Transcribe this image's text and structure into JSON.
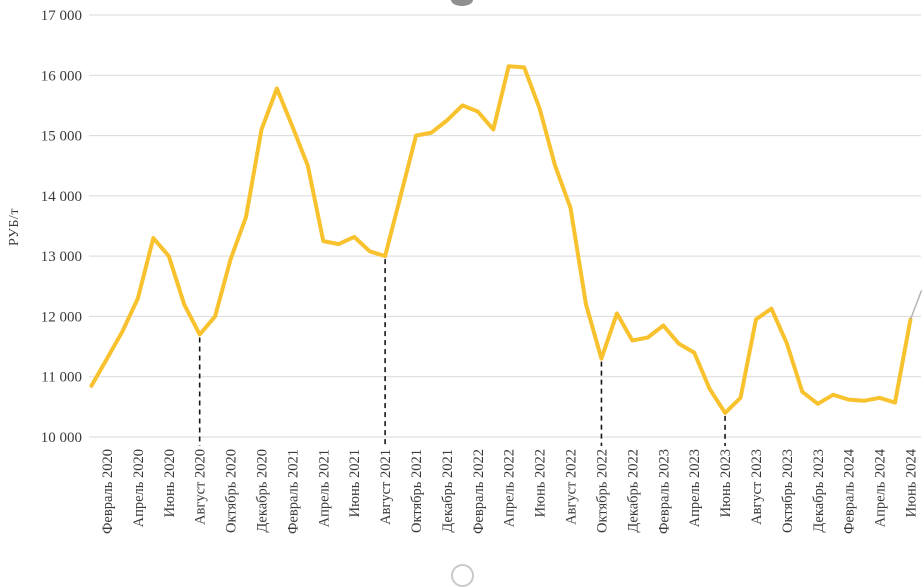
{
  "figure": {
    "background": "#ffffff",
    "gridline_color": "#d9d9d9",
    "text_color": "#3a3a3a",
    "marker_line_color": "#161616",
    "tip_color": "#b3b3b3",
    "selection_handle_top": "visible",
    "selection_handle_bottom": "visible"
  },
  "chart_data": {
    "type": "line",
    "title": "",
    "ylabel": "РУБ/т",
    "ylim": [
      10000,
      17000
    ],
    "y_tick_step": 1000,
    "y_tick_labels": [
      "17 000",
      "16 000",
      "15 000",
      "14 000",
      "13 000",
      "12 000",
      "11 000",
      "10 000"
    ],
    "grid": true,
    "legend": "none",
    "line_color": "#F8C22E",
    "line_width": 4,
    "x_tick_every": 2,
    "x_tick_start_index": 1,
    "x": [
      "Январь 2020",
      "Февраль 2020",
      "Март 2020",
      "Апрель 2020",
      "Май 2020",
      "Июнь 2020",
      "Июль 2020",
      "Август 2020",
      "Сентябрь 2020",
      "Октябрь 2020",
      "Ноябрь 2020",
      "Декабрь 2020",
      "Январь 2021",
      "Февраль 2021",
      "Март 2021",
      "Апрель 2021",
      "Май 2021",
      "Июнь 2021",
      "Июль 2021",
      "Август 2021",
      "Сентябрь 2021",
      "Октябрь 2021",
      "Ноябрь 2021",
      "Декабрь 2021",
      "Январь 2022",
      "Февраль 2022",
      "Март 2022",
      "Апрель 2022",
      "Май 2022",
      "Июнь 2022",
      "Июль 2022",
      "Август 2022",
      "Сентябрь 2022",
      "Октябрь 2022",
      "Ноябрь 2022",
      "Декабрь 2022",
      "Январь 2023",
      "Февраль 2023",
      "Март 2023",
      "Апрель 2023",
      "Май 2023",
      "Июнь 2023",
      "Июль 2023",
      "Август 2023",
      "Сентябрь 2023",
      "Октябрь 2023",
      "Ноябрь 2023",
      "Декабрь 2023",
      "Январь 2024",
      "Февраль 2024",
      "Март 2024",
      "Апрель 2024",
      "Май 2024",
      "Июнь 2024"
    ],
    "values": [
      10850,
      11300,
      11750,
      12300,
      13300,
      13000,
      12200,
      11700,
      12000,
      12950,
      13650,
      15100,
      15780,
      15150,
      14500,
      13250,
      13200,
      13320,
      13080,
      13000,
      14000,
      15000,
      15050,
      15250,
      15500,
      15400,
      15100,
      16150,
      16130,
      15450,
      14500,
      13800,
      12200,
      11300,
      12050,
      11600,
      11650,
      11850,
      11550,
      11400,
      10800,
      10400,
      10650,
      11950,
      12130,
      11550,
      10750,
      10550,
      10700,
      10620,
      10600,
      10650,
      10570,
      11950
    ],
    "dashed_markers": [
      {
        "label": "Август 2020",
        "index": 7,
        "value": 11700
      },
      {
        "label": "Август 2021",
        "index": 19,
        "value": 13000
      },
      {
        "label": "Октябрь 2022",
        "index": 33,
        "value": 11300
      },
      {
        "label": "Июнь 2023",
        "index": 41,
        "value": 10400
      }
    ],
    "gray_tip_end_value": 12430
  }
}
